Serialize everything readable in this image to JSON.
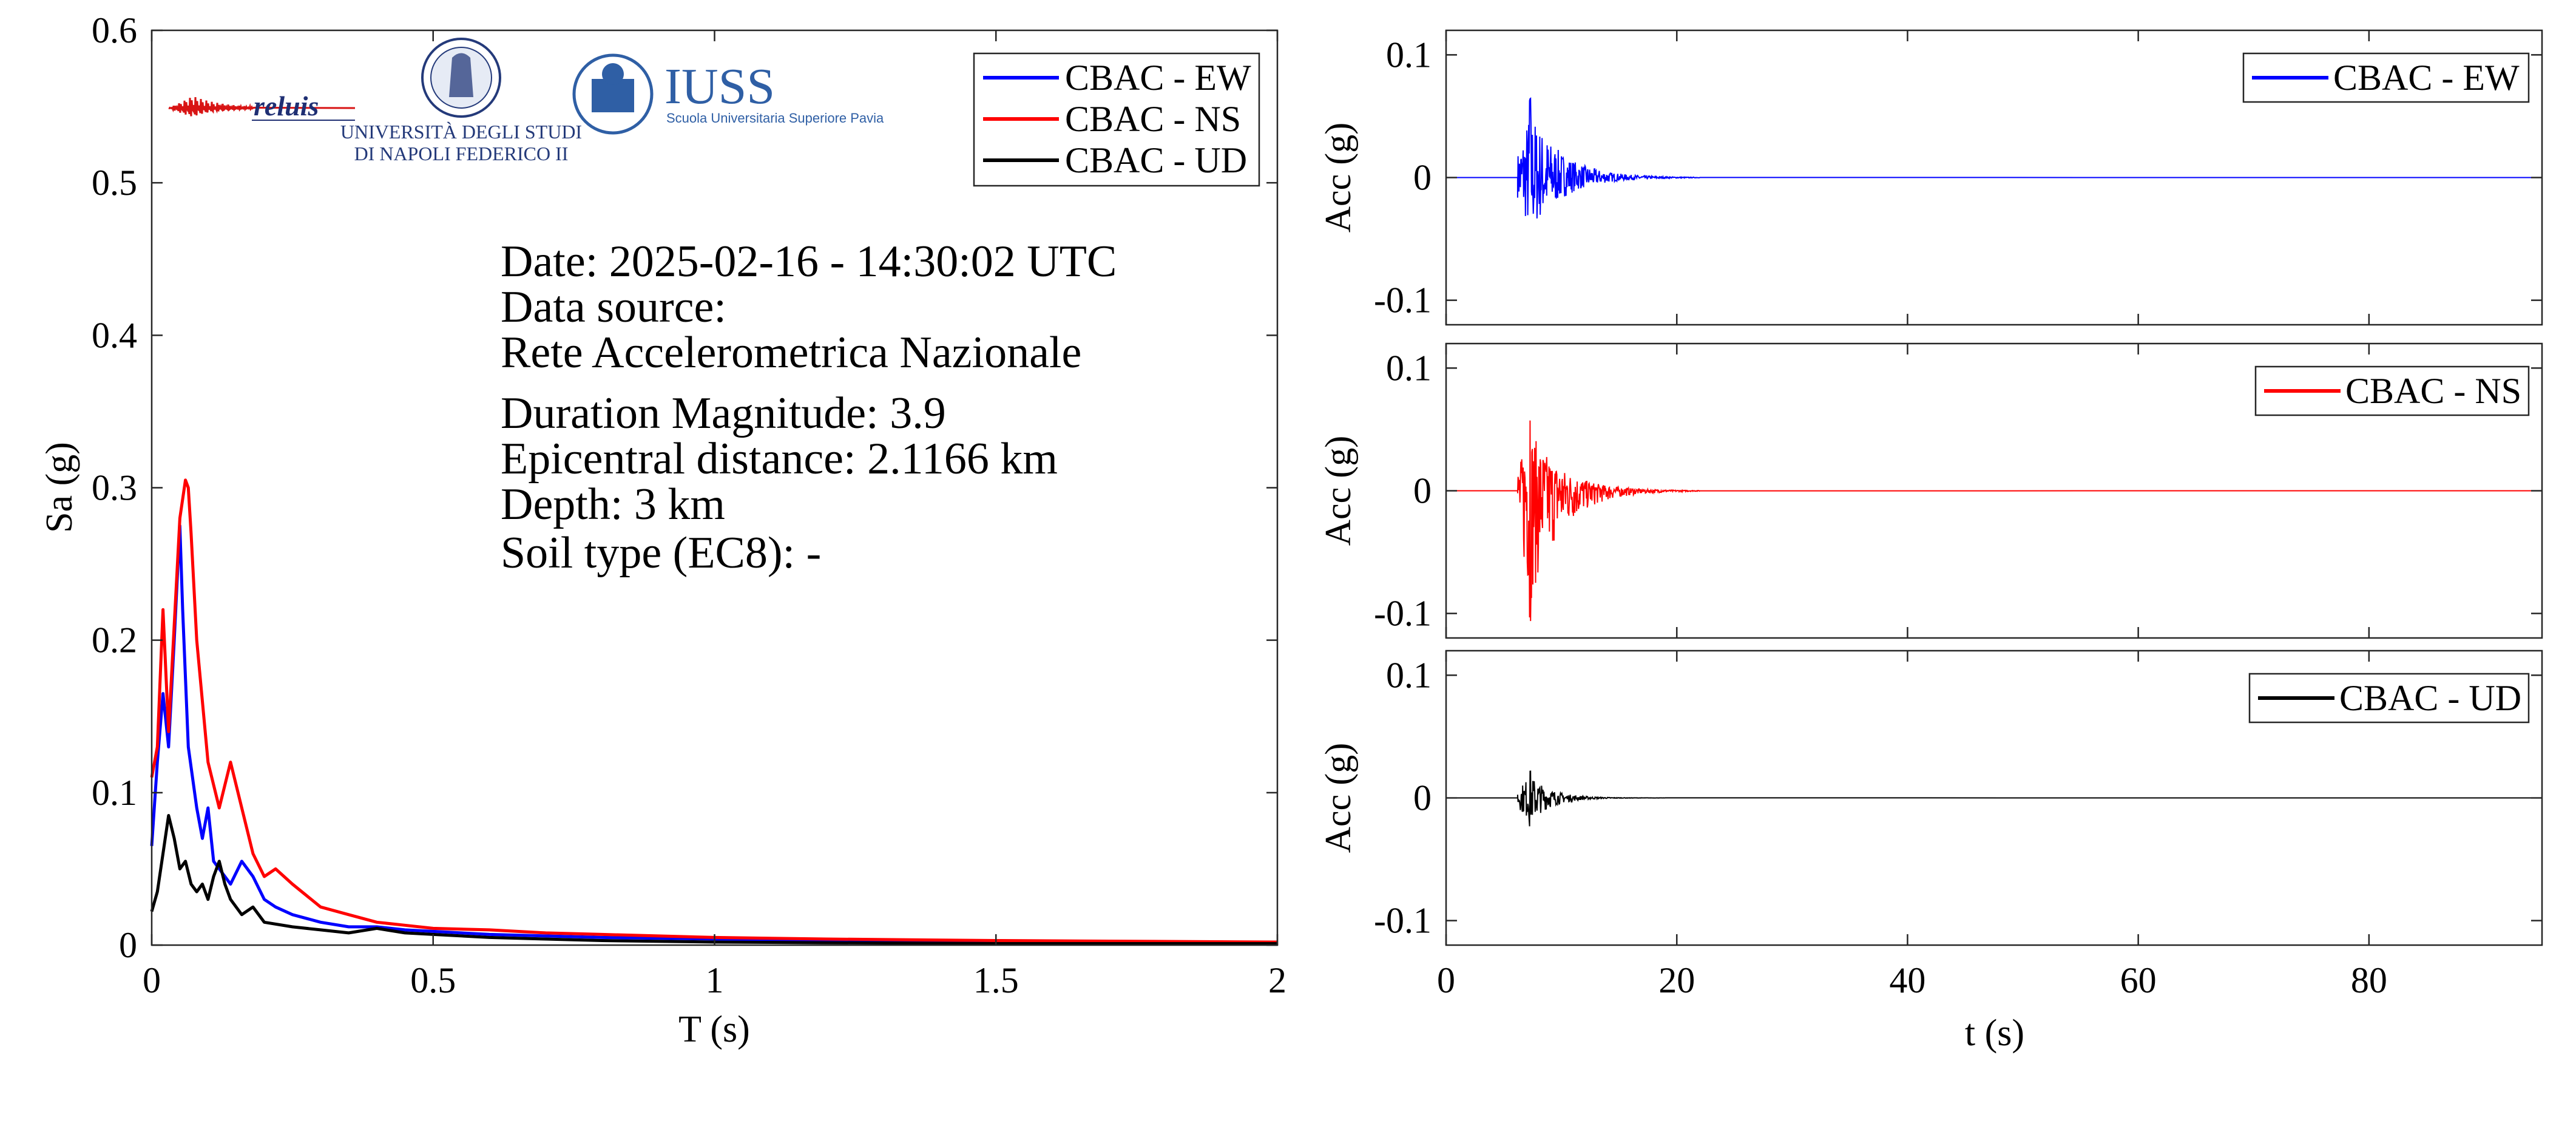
{
  "logos": {
    "reluis": "reluis",
    "unina_line1": "UNIVERSITÀ DEGLI STUDI",
    "unina_line2": "DI NAPOLI FEDERICO II",
    "iuss_name": "IUSS",
    "iuss_sub": "Scuola Universitaria Superiore Pavia"
  },
  "info": {
    "date": "Date: 2025-02-16 - 14:30:02 UTC",
    "source_label": "Data source:",
    "source_value": "Rete Accelerometrica Nazionale",
    "magnitude": "Duration Magnitude: 3.9",
    "distance": "Epicentral distance: 2.1166 km",
    "depth": "Depth: 3 km",
    "soil": "Soil type (EC8): -"
  },
  "colors": {
    "ew": "#0000ff",
    "ns": "#ff0000",
    "ud": "#000000"
  },
  "chart_data": [
    {
      "type": "line",
      "xlabel": "T (s)",
      "ylabel": "Sa (g)",
      "xlim": [
        0,
        2
      ],
      "ylim": [
        0,
        0.6
      ],
      "xticks": [
        "0",
        "0.5",
        "1",
        "1.5",
        "2"
      ],
      "yticks": [
        "0",
        "0.1",
        "0.2",
        "0.3",
        "0.4",
        "0.5",
        "0.6"
      ],
      "grid": false,
      "legend_position": "top-right",
      "series": [
        {
          "name": "CBAC - EW",
          "x": [
            0,
            0.01,
            0.02,
            0.03,
            0.04,
            0.05,
            0.055,
            0.065,
            0.08,
            0.09,
            0.1,
            0.11,
            0.12,
            0.14,
            0.16,
            0.18,
            0.2,
            0.22,
            0.25,
            0.3,
            0.35,
            0.4,
            0.45,
            0.5,
            0.6,
            0.7,
            0.8,
            1.0,
            1.2,
            1.5,
            2.0
          ],
          "values": [
            0.065,
            0.12,
            0.165,
            0.13,
            0.2,
            0.275,
            0.22,
            0.13,
            0.09,
            0.07,
            0.09,
            0.055,
            0.05,
            0.04,
            0.055,
            0.045,
            0.03,
            0.025,
            0.02,
            0.015,
            0.012,
            0.012,
            0.01,
            0.009,
            0.007,
            0.006,
            0.005,
            0.004,
            0.003,
            0.002,
            0.001
          ]
        },
        {
          "name": "CBAC - NS",
          "x": [
            0,
            0.01,
            0.02,
            0.025,
            0.03,
            0.04,
            0.05,
            0.06,
            0.065,
            0.07,
            0.08,
            0.09,
            0.1,
            0.12,
            0.14,
            0.16,
            0.18,
            0.2,
            0.22,
            0.25,
            0.3,
            0.35,
            0.4,
            0.45,
            0.5,
            0.6,
            0.7,
            0.8,
            1.0,
            1.2,
            1.5,
            2.0
          ],
          "values": [
            0.11,
            0.13,
            0.22,
            0.18,
            0.14,
            0.21,
            0.28,
            0.305,
            0.3,
            0.27,
            0.2,
            0.16,
            0.12,
            0.09,
            0.12,
            0.09,
            0.06,
            0.045,
            0.05,
            0.04,
            0.025,
            0.02,
            0.015,
            0.013,
            0.011,
            0.01,
            0.008,
            0.007,
            0.005,
            0.004,
            0.003,
            0.002
          ]
        },
        {
          "name": "CBAC - UD",
          "x": [
            0,
            0.01,
            0.02,
            0.03,
            0.04,
            0.05,
            0.06,
            0.07,
            0.08,
            0.09,
            0.1,
            0.11,
            0.12,
            0.13,
            0.14,
            0.16,
            0.18,
            0.2,
            0.25,
            0.3,
            0.35,
            0.4,
            0.45,
            0.5,
            0.6,
            0.7,
            0.8,
            1.0,
            1.5,
            2.0
          ],
          "values": [
            0.022,
            0.035,
            0.06,
            0.085,
            0.07,
            0.05,
            0.055,
            0.04,
            0.035,
            0.04,
            0.03,
            0.045,
            0.055,
            0.04,
            0.03,
            0.02,
            0.025,
            0.015,
            0.012,
            0.01,
            0.008,
            0.011,
            0.008,
            0.007,
            0.005,
            0.004,
            0.003,
            0.002,
            0.001,
            0.001
          ]
        }
      ]
    },
    {
      "type": "line",
      "xlabel": "",
      "ylabel": "Acc (g)",
      "xlim": [
        0,
        95
      ],
      "ylim": [
        -0.12,
        0.12
      ],
      "yticks": [
        "0.1",
        "0",
        "-0.1"
      ],
      "legend_position": "top-right",
      "series": [
        {
          "name": "CBAC - EW",
          "event_start_s": 6.2,
          "peak_time_s": 7.3,
          "peak_positive": 0.065,
          "peak_negative": -0.055,
          "decay_end_s": 16
        }
      ]
    },
    {
      "type": "line",
      "xlabel": "",
      "ylabel": "Acc (g)",
      "xlim": [
        0,
        95
      ],
      "ylim": [
        -0.12,
        0.12
      ],
      "yticks": [
        "0.1",
        "0",
        "-0.1"
      ],
      "legend_position": "top-right",
      "series": [
        {
          "name": "CBAC - NS",
          "event_start_s": 6.2,
          "peak_time_s": 7.3,
          "peak_positive": 0.058,
          "peak_negative": -0.107,
          "decay_end_s": 16
        }
      ]
    },
    {
      "type": "line",
      "xlabel": "t (s)",
      "ylabel": "Acc (g)",
      "xlim": [
        0,
        95
      ],
      "ylim": [
        -0.12,
        0.12
      ],
      "xticks": [
        "0",
        "20",
        "40",
        "60",
        "80"
      ],
      "yticks": [
        "0.1",
        "0",
        "-0.1"
      ],
      "legend_position": "top-right",
      "series": [
        {
          "name": "CBAC - UD",
          "event_start_s": 6.2,
          "peak_time_s": 7.3,
          "peak_positive": 0.022,
          "peak_negative": -0.024,
          "decay_end_s": 13
        }
      ]
    }
  ]
}
